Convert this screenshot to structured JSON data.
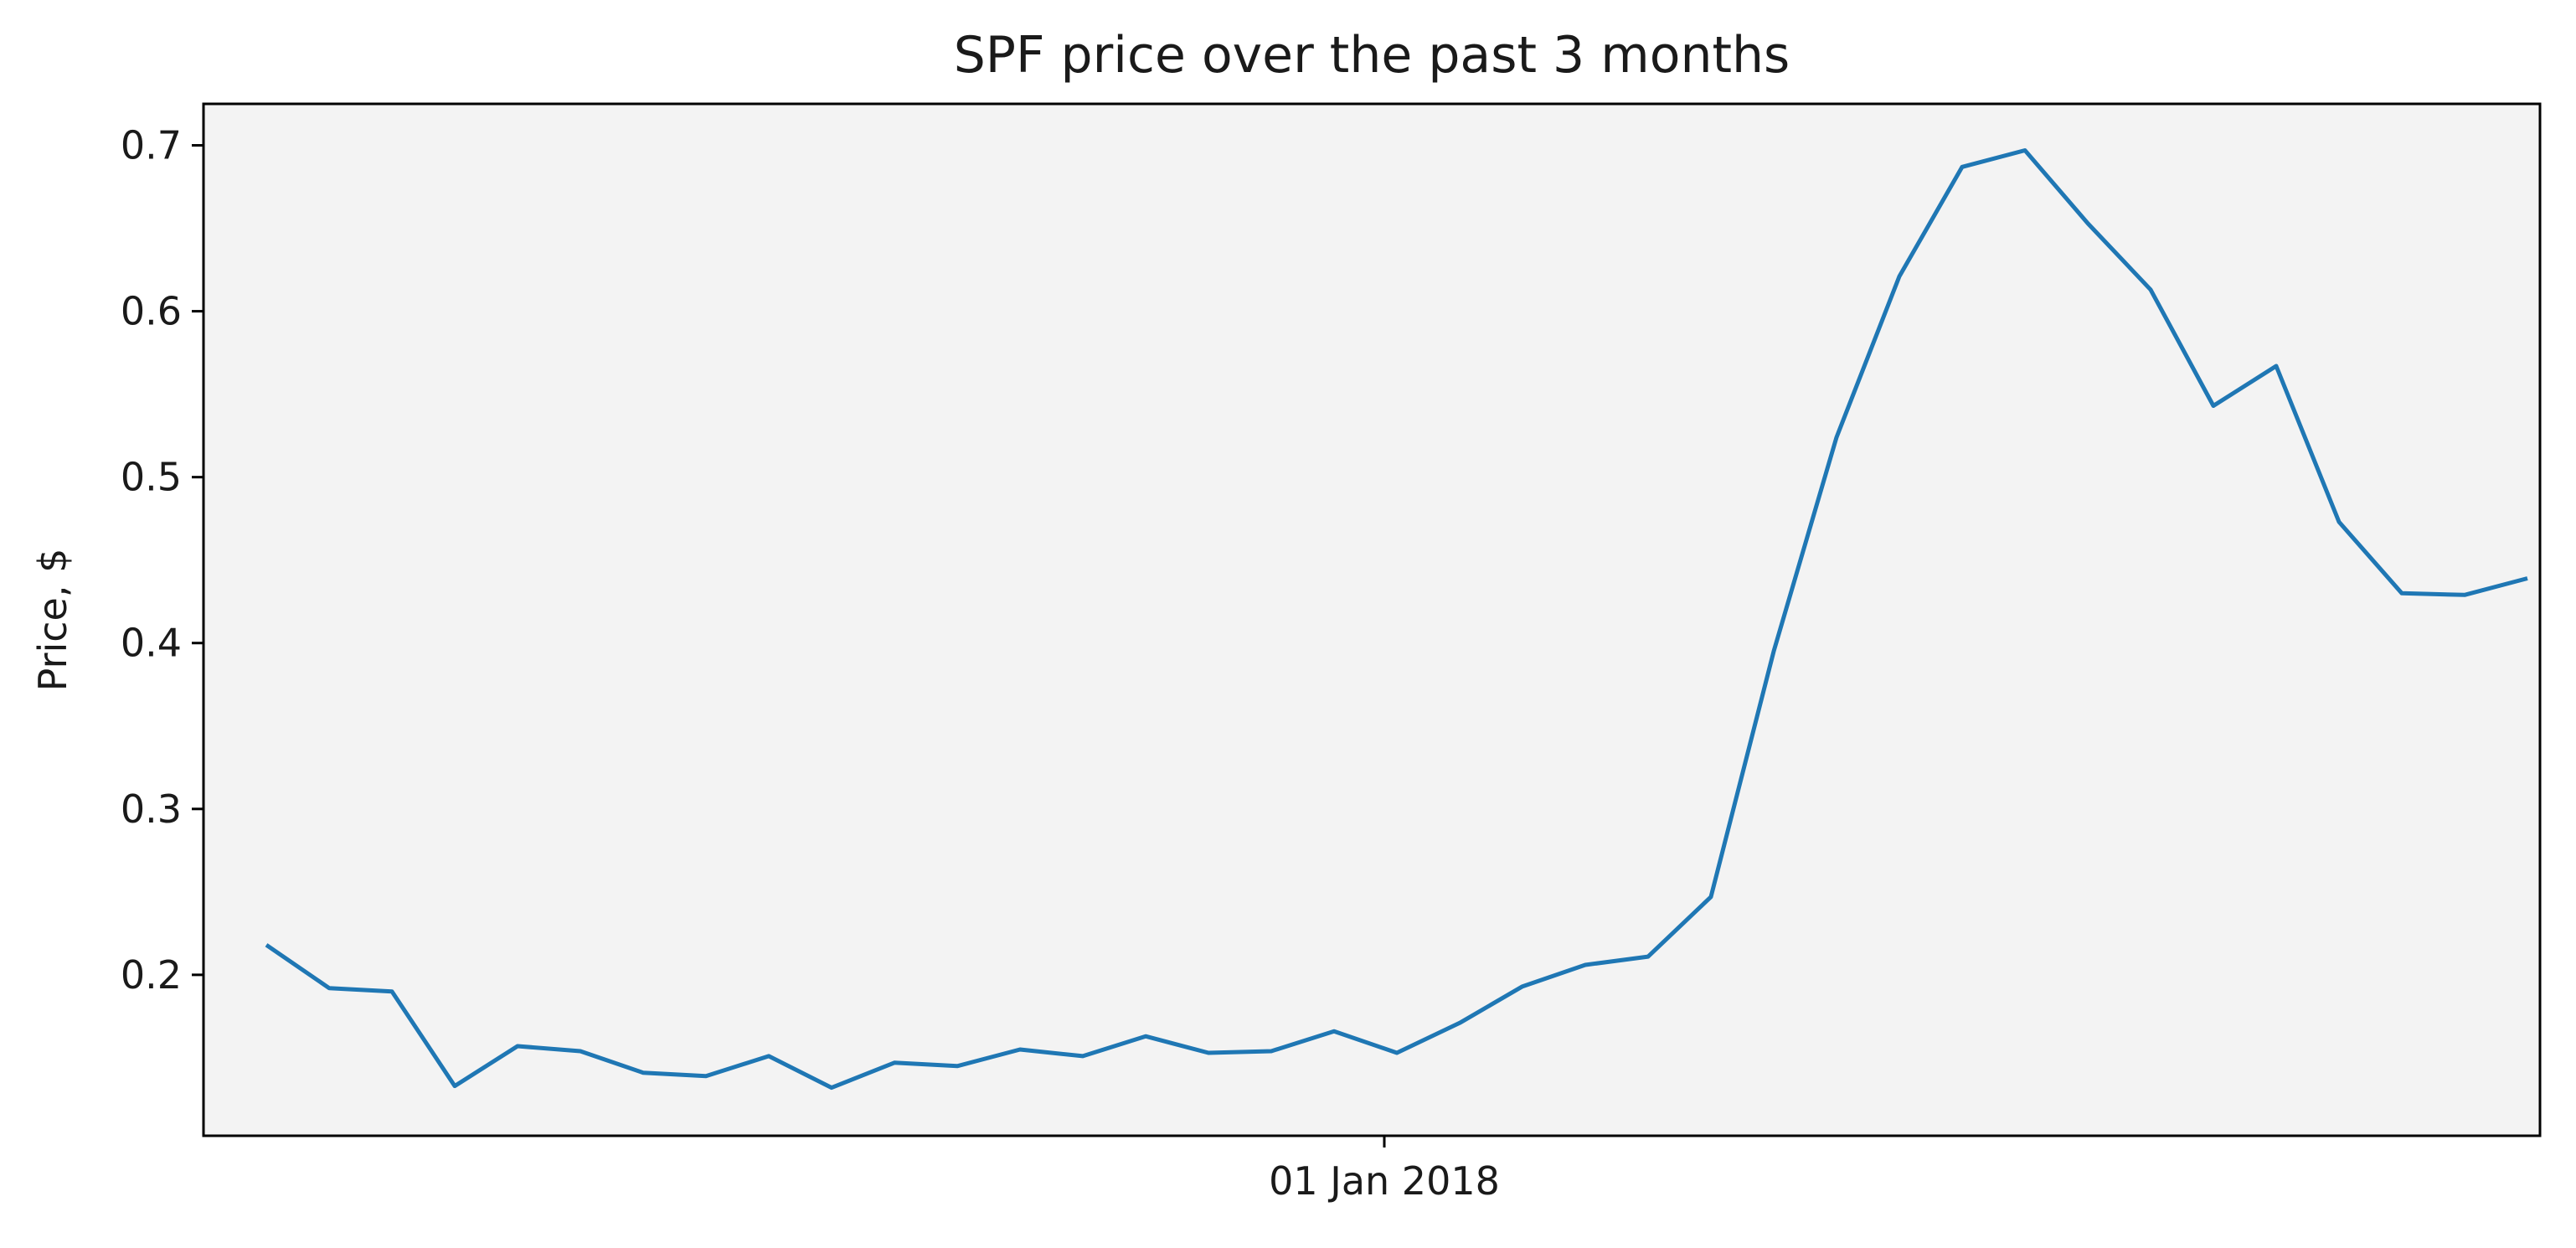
{
  "chart_data": {
    "type": "line",
    "title": "SPF price over the past 3 months",
    "xlabel": "",
    "ylabel": "Price, $",
    "x_tick_labels": [
      {
        "date": "2018-01-01",
        "label": "01 Jan 2018"
      }
    ],
    "y_ticks": [
      0.2,
      0.3,
      0.4,
      0.5,
      0.6,
      0.7
    ],
    "y_tick_labels": [
      "0.2",
      "0.3",
      "0.4",
      "0.5",
      "0.6",
      "0.7"
    ],
    "ylim": [
      0.103,
      0.725
    ],
    "xlim": [
      "2017-09-29",
      "2018-04-03"
    ],
    "grid": false,
    "background_color": "#f3f3f3",
    "series": [
      {
        "color": "#1f77b4",
        "points": [
          {
            "x": "2017-10-04",
            "y": 0.218
          },
          {
            "x": "2017-10-09",
            "y": 0.192
          },
          {
            "x": "2017-10-14",
            "y": 0.19
          },
          {
            "x": "2017-10-19",
            "y": 0.133
          },
          {
            "x": "2017-10-24",
            "y": 0.157
          },
          {
            "x": "2017-10-29",
            "y": 0.154
          },
          {
            "x": "2017-11-03",
            "y": 0.141
          },
          {
            "x": "2017-11-08",
            "y": 0.139
          },
          {
            "x": "2017-11-13",
            "y": 0.151
          },
          {
            "x": "2017-11-18",
            "y": 0.132
          },
          {
            "x": "2017-11-23",
            "y": 0.147
          },
          {
            "x": "2017-11-28",
            "y": 0.145
          },
          {
            "x": "2017-12-03",
            "y": 0.155
          },
          {
            "x": "2017-12-08",
            "y": 0.151
          },
          {
            "x": "2017-12-13",
            "y": 0.163
          },
          {
            "x": "2017-12-18",
            "y": 0.153
          },
          {
            "x": "2017-12-23",
            "y": 0.154
          },
          {
            "x": "2017-12-28",
            "y": 0.166
          },
          {
            "x": "2018-01-02",
            "y": 0.153
          },
          {
            "x": "2018-01-07",
            "y": 0.171
          },
          {
            "x": "2018-01-12",
            "y": 0.193
          },
          {
            "x": "2018-01-17",
            "y": 0.206
          },
          {
            "x": "2018-01-22",
            "y": 0.211
          },
          {
            "x": "2018-01-27",
            "y": 0.247
          },
          {
            "x": "2018-02-01",
            "y": 0.395
          },
          {
            "x": "2018-02-06",
            "y": 0.524
          },
          {
            "x": "2018-02-11",
            "y": 0.621
          },
          {
            "x": "2018-02-16",
            "y": 0.687
          },
          {
            "x": "2018-02-21",
            "y": 0.697
          },
          {
            "x": "2018-02-26",
            "y": 0.653
          },
          {
            "x": "2018-03-03",
            "y": 0.613
          },
          {
            "x": "2018-03-08",
            "y": 0.543
          },
          {
            "x": "2018-03-13",
            "y": 0.567
          },
          {
            "x": "2018-03-18",
            "y": 0.473
          },
          {
            "x": "2018-03-23",
            "y": 0.43
          },
          {
            "x": "2018-03-28",
            "y": 0.429
          },
          {
            "x": "2018-04-02",
            "y": 0.439
          }
        ]
      }
    ]
  }
}
